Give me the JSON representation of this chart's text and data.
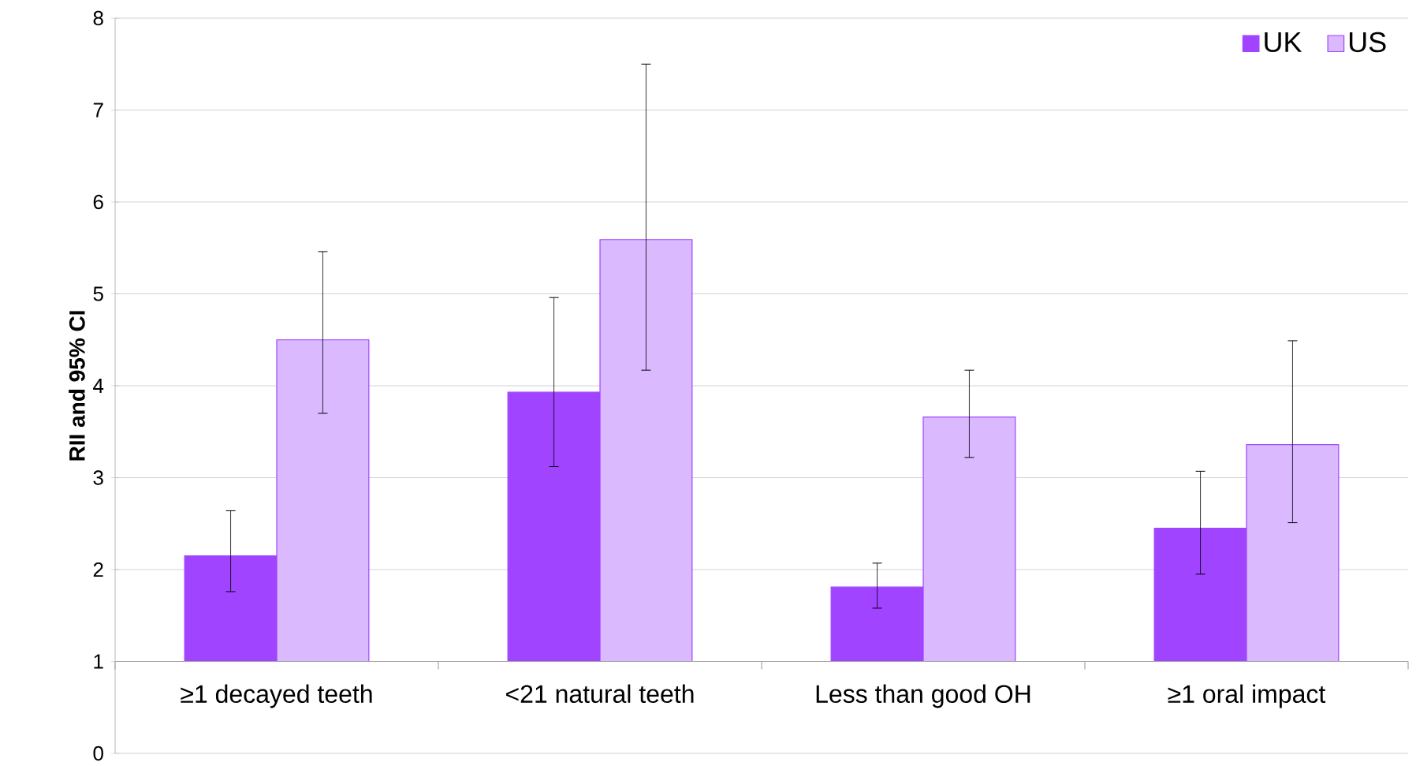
{
  "chart_data": {
    "type": "bar",
    "ylabel": "RII and 95% CI",
    "categories": [
      "≥1 decayed teeth",
      "<21 natural teeth",
      "Less than good OH",
      "≥1 oral impact"
    ],
    "series": [
      {
        "name": "UK",
        "color": "#a044ff",
        "base": [
          1,
          1,
          1,
          1
        ],
        "values": [
          1.15,
          2.93,
          0.81,
          1.45
        ],
        "errors": [
          [
            1.76,
            2.64
          ],
          [
            3.12,
            4.96
          ],
          [
            1.58,
            2.07
          ],
          [
            1.95,
            3.07
          ]
        ]
      },
      {
        "name": "US",
        "color": "#dab9ff",
        "base": [
          1,
          1,
          1,
          1
        ],
        "values": [
          3.5,
          4.59,
          2.66,
          2.36
        ],
        "errors": [
          [
            3.7,
            5.46
          ],
          [
            4.17,
            7.5
          ],
          [
            3.22,
            4.17
          ],
          [
            2.51,
            4.49
          ]
        ]
      }
    ],
    "ylim": [
      0,
      8
    ],
    "yticks": [
      0,
      1,
      2,
      3,
      4,
      5,
      6,
      7,
      8
    ],
    "grid": "y",
    "legend": "top right"
  }
}
